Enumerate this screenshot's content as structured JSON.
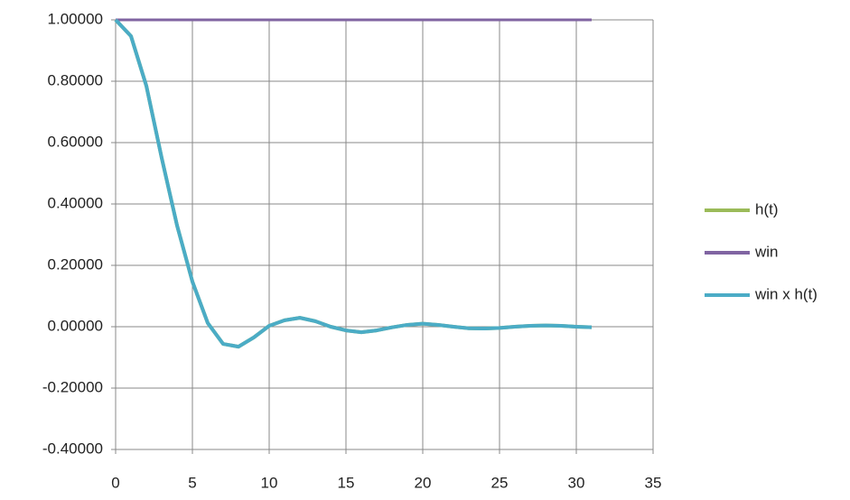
{
  "chart_data": {
    "type": "line",
    "x": [
      0,
      1,
      2,
      3,
      4,
      5,
      6,
      7,
      8,
      9,
      10,
      11,
      12,
      13,
      14,
      15,
      16,
      17,
      18,
      19,
      20,
      21,
      22,
      23,
      24,
      25,
      26,
      27,
      28,
      29,
      30,
      31
    ],
    "series": [
      {
        "name": "h(t)",
        "color": "#9bbb59",
        "values": [
          1.0,
          0.947,
          0.785,
          0.55,
          0.33,
          0.147,
          0.012,
          -0.056,
          -0.065,
          -0.035,
          0.003,
          0.021,
          0.029,
          0.018,
          0.0,
          -0.012,
          -0.018,
          -0.012,
          -0.002,
          0.006,
          0.01,
          0.006,
          0.0,
          -0.005,
          -0.006,
          -0.004,
          0.0,
          0.003,
          0.004,
          0.003,
          0.0,
          -0.002
        ]
      },
      {
        "name": "win",
        "color": "#8064a2",
        "values": [
          1,
          1,
          1,
          1,
          1,
          1,
          1,
          1,
          1,
          1,
          1,
          1,
          1,
          1,
          1,
          1,
          1,
          1,
          1,
          1,
          1,
          1,
          1,
          1,
          1,
          1,
          1,
          1,
          1,
          1,
          1,
          1
        ]
      },
      {
        "name": "win x h(t)",
        "color": "#4bacc6",
        "values": [
          1.0,
          0.947,
          0.785,
          0.55,
          0.33,
          0.147,
          0.012,
          -0.056,
          -0.065,
          -0.035,
          0.003,
          0.021,
          0.029,
          0.018,
          0.0,
          -0.012,
          -0.018,
          -0.012,
          -0.002,
          0.006,
          0.01,
          0.006,
          0.0,
          -0.005,
          -0.006,
          -0.004,
          0.0,
          0.003,
          0.004,
          0.003,
          0.0,
          -0.002
        ]
      }
    ],
    "xlim": [
      0,
      35
    ],
    "xticks": [
      0,
      5,
      10,
      15,
      20,
      25,
      30,
      35
    ],
    "ylim": [
      -0.4,
      1.0
    ],
    "yticks": [
      {
        "value": -0.4,
        "label": "-0.40000"
      },
      {
        "value": -0.2,
        "label": "-0.20000"
      },
      {
        "value": 0,
        "label": "0.00000"
      },
      {
        "value": 0.2,
        "label": "0.20000"
      },
      {
        "value": 0.4,
        "label": "0.40000"
      },
      {
        "value": 0.6,
        "label": "0.60000"
      },
      {
        "value": 0.8,
        "label": "0.80000"
      },
      {
        "value": 1.0,
        "label": "1.00000"
      }
    ],
    "grid": true,
    "legend": "right"
  }
}
